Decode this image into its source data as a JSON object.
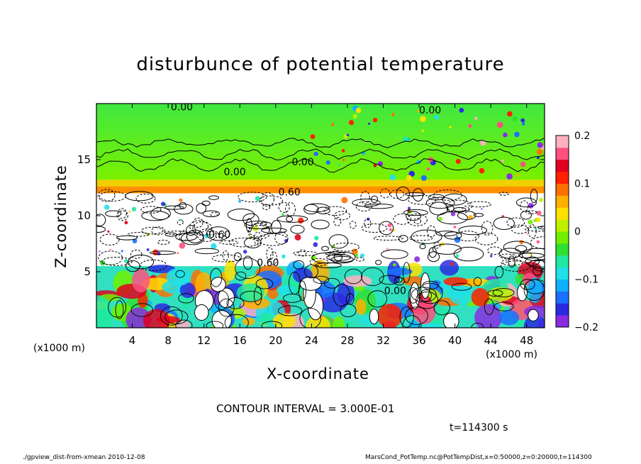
{
  "title": "disturbunce of potential temperature",
  "chart_data": {
    "type": "heatmap",
    "title": "disturbunce of potential temperature",
    "xlabel": "X-coordinate",
    "ylabel": "Z-coordinate",
    "x_unit": "(×1000 m)",
    "xlim": [
      0,
      50
    ],
    "ylim": [
      0,
      20
    ],
    "x_ticks": [
      4,
      8,
      12,
      16,
      20,
      24,
      28,
      32,
      36,
      40,
      44,
      48
    ],
    "y_ticks": [
      5,
      10,
      15
    ],
    "colorbar": {
      "range": [
        -0.2,
        0.2
      ],
      "tick_labels": [
        "0.2",
        "0.1",
        "0",
        "−0.1",
        "−0.2"
      ],
      "tick_values": [
        0.2,
        0.1,
        0,
        -0.1,
        -0.2
      ],
      "colors": [
        "#8a2be2",
        "#2a2ae0",
        "#1a70ff",
        "#10b0ff",
        "#20e0e8",
        "#20e8a0",
        "#30e030",
        "#70f000",
        "#c0f000",
        "#ffe000",
        "#ffb000",
        "#ff7000",
        "#ff2000",
        "#e00020",
        "#ff5080",
        "#ffb0c0"
      ]
    },
    "contour_labels": [
      "0.00",
      "0.00",
      "0.00",
      "0.00",
      "0.60",
      "0.60",
      "0.60",
      "0.00"
    ],
    "contour_interval": "CONTOUR INTERVAL = 3.000E-01",
    "layers": [
      {
        "z_range": [
          0,
          5.5
        ],
        "pattern": "convective cells, mixed strong anomalies"
      },
      {
        "z_range": [
          5.5,
          12
        ],
        "pattern": "dense contours, near-zero fill"
      },
      {
        "z_range": [
          12,
          13.2
        ],
        "pattern": "positive band"
      },
      {
        "z_range": [
          13.2,
          20
        ],
        "pattern": "near zero / slightly positive"
      }
    ]
  },
  "annotations": {
    "xunit_left": "(x1000 m)",
    "xunit_right": "(x1000 m)",
    "contour": "CONTOUR INTERVAL = 3.000E-01",
    "time": "t=114300 s",
    "footer_left": "./gpview_dist-from-xmean   2010-12-08",
    "footer_right": "MarsCond_PotTemp.nc@PotTempDist,x=0:50000,z=0:20000,t=114300"
  }
}
